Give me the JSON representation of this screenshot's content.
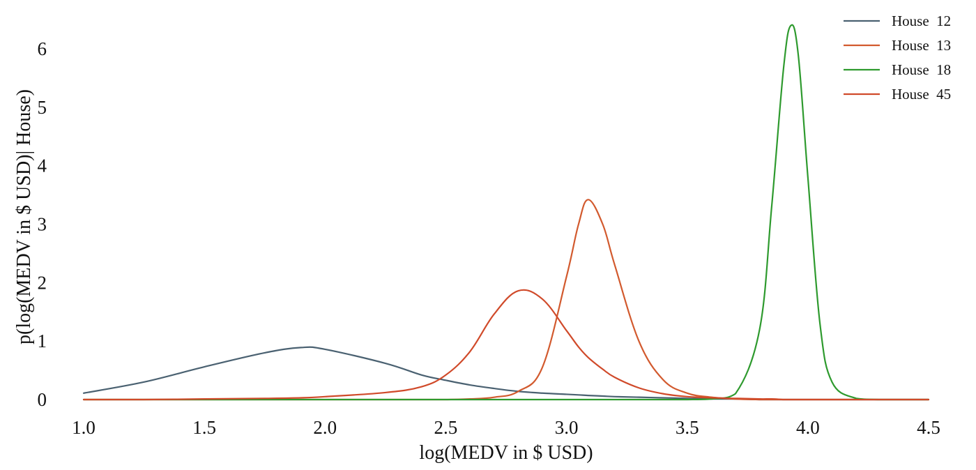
{
  "chart_data": {
    "type": "line",
    "title": "",
    "xlabel": "log(MEDV in $ USD)",
    "ylabel": "p(log(MEDV in $ USD)| House)",
    "xlim": [
      1.0,
      4.5
    ],
    "ylim": [
      0,
      6.5
    ],
    "xticks": [
      "1.0",
      "1.5",
      "2.0",
      "2.5",
      "3.0",
      "3.5",
      "4.0",
      "4.5"
    ],
    "yticks": [
      "0",
      "1",
      "2",
      "3",
      "4",
      "5",
      "6"
    ],
    "grid": false,
    "legend_position": "top-right",
    "x": [
      1.0,
      1.25,
      1.5,
      1.75,
      1.9,
      2.0,
      2.25,
      2.4,
      2.5,
      2.6,
      2.7,
      2.8,
      2.9,
      3.0,
      3.05,
      3.09,
      3.15,
      3.2,
      3.3,
      3.4,
      3.5,
      3.6,
      3.7,
      3.8,
      3.85,
      3.9,
      3.93,
      3.96,
      4.0,
      4.05,
      4.1,
      4.2,
      4.3,
      4.5
    ],
    "series": [
      {
        "name": "House  12",
        "color": "#4a6171",
        "values": [
          0.11,
          0.3,
          0.56,
          0.8,
          0.89,
          0.86,
          0.62,
          0.42,
          0.33,
          0.25,
          0.19,
          0.14,
          0.11,
          0.09,
          0.08,
          0.07,
          0.06,
          0.05,
          0.04,
          0.03,
          0.02,
          0.01,
          0.01,
          0.0,
          0.0,
          0.0,
          0.0,
          0.0,
          0.0,
          0.0,
          0.0,
          0.0,
          0.0,
          0.0
        ]
      },
      {
        "name": "House  13",
        "color": "#d25a2e",
        "values": [
          0.0,
          0.0,
          0.0,
          0.0,
          0.0,
          0.0,
          0.0,
          0.0,
          0.0,
          0.01,
          0.04,
          0.14,
          0.55,
          2.1,
          3.0,
          3.42,
          3.0,
          2.3,
          1.0,
          0.34,
          0.11,
          0.04,
          0.01,
          0.0,
          0.0,
          0.0,
          0.0,
          0.0,
          0.0,
          0.0,
          0.0,
          0.0,
          0.0,
          0.0
        ]
      },
      {
        "name": "House  18",
        "color": "#2e9a2e",
        "values": [
          0.0,
          0.0,
          0.0,
          0.0,
          0.0,
          0.0,
          0.0,
          0.0,
          0.0,
          0.0,
          0.0,
          0.0,
          0.0,
          0.0,
          0.0,
          0.0,
          0.0,
          0.0,
          0.0,
          0.0,
          0.0,
          0.01,
          0.1,
          1.2,
          3.3,
          5.7,
          6.4,
          5.9,
          3.8,
          1.3,
          0.3,
          0.02,
          0.0,
          0.0
        ]
      },
      {
        "name": "House  45",
        "color": "#d04a2a",
        "values": [
          0.0,
          0.0,
          0.01,
          0.02,
          0.03,
          0.05,
          0.12,
          0.22,
          0.42,
          0.82,
          1.46,
          1.86,
          1.72,
          1.18,
          0.9,
          0.72,
          0.52,
          0.38,
          0.2,
          0.1,
          0.05,
          0.03,
          0.02,
          0.01,
          0.01,
          0.0,
          0.0,
          0.0,
          0.0,
          0.0,
          0.0,
          0.0,
          0.0,
          0.0
        ]
      }
    ]
  }
}
